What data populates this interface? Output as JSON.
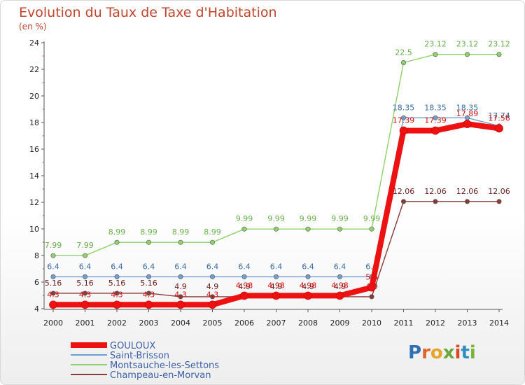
{
  "title": "Evolution du Taux de Taxe d'Habitation",
  "unit_label": "(en %)",
  "logo_text": "Proxiti",
  "chart_data": {
    "type": "line",
    "x": [
      "2000",
      "2001",
      "2002",
      "2003",
      "2004",
      "2005",
      "2006",
      "2007",
      "2008",
      "2009",
      "2010",
      "2011",
      "2012",
      "2013",
      "2014"
    ],
    "ylim": [
      4,
      24
    ],
    "yticks": [
      4,
      6,
      8,
      10,
      12,
      14,
      16,
      18,
      20,
      22,
      24
    ],
    "grid": false,
    "legend_position": "bottom-left",
    "series": [
      {
        "name": "Montsauche-les-Settons",
        "color": "#8fd16a",
        "values": [
          7.99,
          7.99,
          8.99,
          8.99,
          8.99,
          8.99,
          9.99,
          9.99,
          9.99,
          9.99,
          9.99,
          22.5,
          23.12,
          23.12,
          23.12
        ],
        "labels": [
          "7.99",
          "7.99",
          "8.99",
          "8.99",
          "8.99",
          "8.99",
          "9.99",
          "9.99",
          "9.99",
          "9.99",
          "9.99",
          "22.5",
          "23.12",
          "23.12",
          "23.12"
        ]
      },
      {
        "name": "Saint-Brisson",
        "color": "#6e9fd0",
        "values": [
          6.4,
          6.4,
          6.4,
          6.4,
          6.4,
          6.4,
          6.4,
          6.4,
          6.4,
          6.4,
          6.4,
          18.35,
          18.35,
          18.35,
          17.74
        ],
        "labels": [
          "6.4",
          "6.4",
          "6.4",
          "6.4",
          "6.4",
          "6.4",
          "6.4",
          "6.4",
          "6.4",
          "6.4",
          "6.4",
          "18.35",
          "18.35",
          "18.35",
          "17.74"
        ]
      },
      {
        "name": "Champeau-en-Morvan",
        "color": "#8b3a3a",
        "values": [
          5.16,
          5.16,
          5.16,
          5.16,
          4.9,
          4.9,
          4.9,
          4.9,
          4.9,
          4.9,
          4.9,
          12.06,
          12.06,
          12.06,
          12.06
        ],
        "labels": [
          "5.16",
          "5.16",
          "5.16",
          "5.16",
          "4.9",
          "4.9",
          "4.9",
          "4.9",
          "4.9",
          "4.9",
          "4.9",
          "12.06",
          "12.06",
          "12.06",
          "12.06"
        ]
      },
      {
        "name": "GOULOUX",
        "color": "#ee1111",
        "values": [
          4.3,
          4.3,
          4.3,
          4.3,
          4.3,
          4.3,
          4.98,
          4.98,
          4.98,
          4.98,
          5.6,
          17.39,
          17.39,
          17.89,
          17.56
        ],
        "labels": [
          "4.3",
          "4.3",
          "4.3",
          "4.3",
          "4.3",
          "4.3",
          "4.98",
          "4.98",
          "4.98",
          "4.98",
          "5.6",
          "17.39",
          "17.39",
          "17.89",
          "17.56"
        ]
      }
    ],
    "legend_order": [
      "GOULOUX",
      "Saint-Brisson",
      "Montsauche-les-Settons",
      "Champeau-en-Morvan"
    ]
  }
}
